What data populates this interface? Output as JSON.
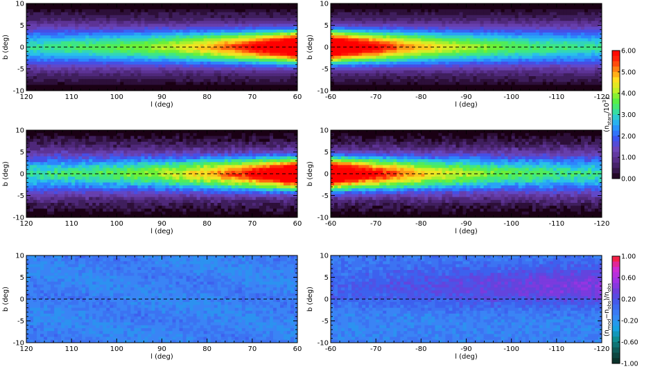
{
  "chart_data": [
    {
      "type": "heatmap",
      "row": "top",
      "xlabel": "l (deg)",
      "ylabel": "b (deg)",
      "xlim": [
        120,
        60
      ],
      "ylim": [
        -10,
        10
      ],
      "xticks": [
        "120",
        "110",
        "100",
        "90",
        "80",
        "70",
        "60"
      ],
      "yticks": [
        "10",
        "5",
        "0",
        "-5",
        "-10"
      ],
      "midline_b": 0,
      "description_of_field": "star counts, enhanced near b=0 and toward l=60"
    },
    {
      "type": "heatmap",
      "row": "top",
      "xlabel": "l (deg)",
      "ylabel": "b (deg)",
      "xlim": [
        -60,
        -120
      ],
      "ylim": [
        -10,
        10
      ],
      "xticks": [
        "-60",
        "-70",
        "-80",
        "-90",
        "-100",
        "-110",
        "-120"
      ],
      "yticks": [
        "10",
        "5",
        "0",
        "-5",
        "-10"
      ],
      "midline_b": 0
    },
    {
      "type": "heatmap",
      "row": "middle",
      "xlabel": "l (deg)",
      "ylabel": "b (deg)",
      "xlim": [
        120,
        60
      ],
      "ylim": [
        -10,
        10
      ],
      "xticks": [
        "120",
        "110",
        "100",
        "90",
        "80",
        "70",
        "60"
      ],
      "yticks": [
        "10",
        "5",
        "0",
        "-5",
        "-10"
      ],
      "midline_b": 0
    },
    {
      "type": "heatmap",
      "row": "middle",
      "xlabel": "l (deg)",
      "ylabel": "b (deg)",
      "xlim": [
        -60,
        -120
      ],
      "ylim": [
        -10,
        10
      ],
      "xticks": [
        "-60",
        "-70",
        "-80",
        "-90",
        "-100",
        "-110",
        "-120"
      ],
      "yticks": [
        "10",
        "5",
        "0",
        "-5",
        "-10"
      ],
      "midline_b": 0
    },
    {
      "type": "heatmap",
      "row": "bottom",
      "xlabel": "l (deg)",
      "ylabel": "b (deg)",
      "xlim": [
        120,
        60
      ],
      "ylim": [
        -10,
        10
      ],
      "xticks": [
        "120",
        "110",
        "100",
        "90",
        "80",
        "70",
        "60"
      ],
      "yticks": [
        "10",
        "5",
        "0",
        "-5",
        "-10"
      ],
      "midline_b": 0
    },
    {
      "type": "heatmap",
      "row": "bottom",
      "xlabel": "l (deg)",
      "ylabel": "b (deg)",
      "xlim": [
        -60,
        -120
      ],
      "ylim": [
        -10,
        10
      ],
      "xticks": [
        "-60",
        "-70",
        "-80",
        "-90",
        "-100",
        "-110",
        "-120"
      ],
      "yticks": [
        "10",
        "5",
        "0",
        "-5",
        "-10"
      ],
      "midline_b": 0
    }
  ],
  "colorbars": {
    "counts": {
      "label": "(n_{stars}/10^3)",
      "ticks": [
        "6.00",
        "5.00",
        "4.00",
        "3.00",
        "2.00",
        "1.00",
        "0.00"
      ],
      "range": [
        0,
        6
      ],
      "stops": [
        "#1a0014",
        "#3d1c58",
        "#5a2f8e",
        "#6d45ba",
        "#3d50f0",
        "#2a8cff",
        "#28c3e8",
        "#3ce68a",
        "#5ef03a",
        "#c8f028",
        "#ffe020",
        "#ff8a12",
        "#ff2a08",
        "#ff0000"
      ]
    },
    "residual": {
      "label": "(n_{mod} − n_{obs})/n_{obs}",
      "ticks": [
        "1.00",
        "0.60",
        "0.20",
        "-0.20",
        "-0.60",
        "-1.00"
      ],
      "range": [
        -1,
        1
      ],
      "stops": [
        "#0a2a22",
        "#0e5450",
        "#0e8c90",
        "#18a4e8",
        "#3a86f5",
        "#3d5fee",
        "#6a3fdb",
        "#a232e4",
        "#d22bd0",
        "#ff2020"
      ]
    }
  },
  "axis_text": {
    "xlabel": "l (deg)",
    "ylabel": "b (deg)",
    "left_xticks": [
      "120",
      "110",
      "100",
      "90",
      "80",
      "70",
      "60"
    ],
    "right_xticks": [
      "-60",
      "-70",
      "-80",
      "-90",
      "-100",
      "-110",
      "-120"
    ],
    "yticks": [
      "10",
      "5",
      "0",
      "-5",
      "-10"
    ]
  }
}
